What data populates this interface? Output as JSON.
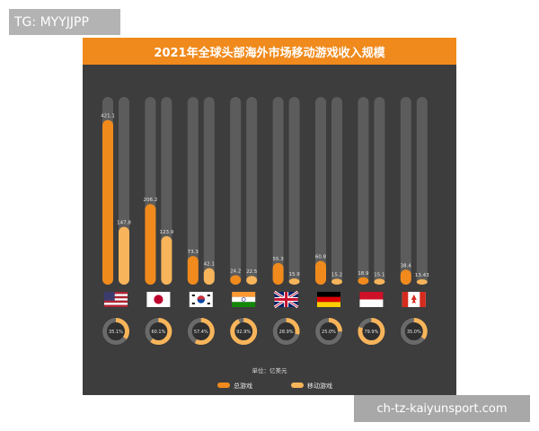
{
  "watermark_top": "TG: MYYJJPP",
  "watermark_bottom": "ch-tz-kaiyunsport.com",
  "colors": {
    "total": "#f08a1c",
    "mobile": "#f7b45a",
    "track": "#5c5c5c",
    "background": "#3d3d3d",
    "donut_bg": "#6a6a6a"
  },
  "chart_data": {
    "type": "bar",
    "title": "2021年全球头部海外市场移动游戏收入规模",
    "unit": "单位：亿美元",
    "categories": [
      "美国",
      "日本",
      "韩国",
      "印度",
      "英国",
      "德国",
      "印度尼西亚",
      "加拿大"
    ],
    "category_icons": [
      "us-flag",
      "japan-flag",
      "korea-flag",
      "india-flag",
      "uk-flag",
      "germany-flag",
      "indonesia-flag",
      "canada-flag"
    ],
    "series": [
      {
        "name": "总游戏",
        "values": [
          421.1,
          206.2,
          73.3,
          24.2,
          55.3,
          60.8,
          18.9,
          38.4
        ],
        "labels": [
          "421.1",
          "206.2",
          "73.3",
          "24.2",
          "55.3",
          "60.8",
          "18.9",
          "38.4"
        ]
      },
      {
        "name": "移动游戏",
        "values": [
          147.8,
          123.9,
          42.1,
          22.5,
          15.9,
          15.2,
          15.1,
          13.43
        ],
        "labels": [
          "147.8",
          "123.9",
          "42.1",
          "22.5",
          "15.9",
          "15.2",
          "15.1",
          "13.43"
        ]
      }
    ],
    "shares": [
      35.1,
      60.1,
      57.4,
      92.9,
      28.9,
      25.0,
      79.9,
      35.0
    ],
    "share_labels": [
      "35.1%",
      "60.1%",
      "57.4%",
      "92.9%",
      "28.9%",
      "25.0%",
      "79.9%",
      "35.0%"
    ],
    "ylim": [
      0,
      480
    ],
    "legend_position": "bottom",
    "grid": false
  }
}
